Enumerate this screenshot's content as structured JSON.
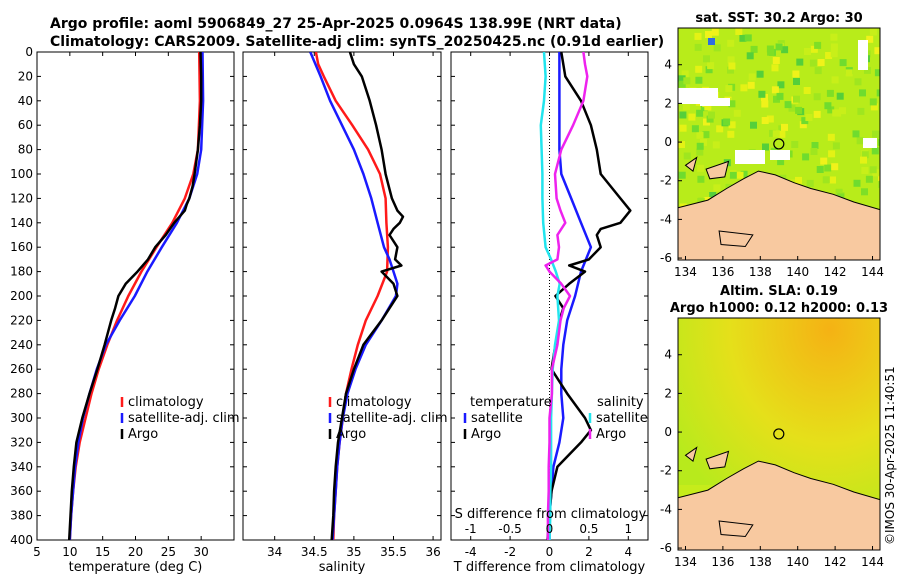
{
  "header": {
    "line1": "Argo profile: aoml 5906849_27 25-Apr-2025 0.0964S 138.99E (NRT data)",
    "line2": "Climatology: CARS2009. Satellite-adj clim: synTS_20250425.nc (0.91d earlier)"
  },
  "colors": {
    "climatology": "#ff1a1a",
    "satellite": "#1a1aff",
    "argo": "#000000",
    "salinity_diff": "#ee22ee",
    "satellite_s_diff": "#22e5ee",
    "land": "#f8c9a0"
  },
  "chart_data": [
    {
      "type": "line",
      "name": "temperature",
      "xlabel": "temperature (deg C)",
      "xlim": [
        5,
        35
      ],
      "xticks": [
        "5",
        "10",
        "15",
        "20",
        "25",
        "30"
      ],
      "xtick_values": [
        5,
        10,
        15,
        20,
        25,
        30
      ],
      "ylim": [
        400,
        0
      ],
      "yticks": [
        "0",
        "20",
        "40",
        "60",
        "80",
        "100",
        "120",
        "140",
        "160",
        "180",
        "200",
        "220",
        "240",
        "260",
        "280",
        "300",
        "320",
        "340",
        "360",
        "380",
        "400"
      ],
      "ytick_values": [
        0,
        20,
        40,
        60,
        80,
        100,
        120,
        140,
        160,
        180,
        200,
        220,
        240,
        260,
        280,
        300,
        320,
        340,
        360,
        380,
        400
      ],
      "legend": [
        "climatology",
        "satellite-adj. clim",
        "Argo"
      ],
      "series": [
        {
          "name": "climatology",
          "color_key": "climatology",
          "depth": [
            0,
            40,
            80,
            100,
            120,
            140,
            160,
            180,
            200,
            220,
            240,
            260,
            280,
            300,
            320,
            340,
            360,
            380,
            400
          ],
          "values": [
            29.7,
            29.8,
            29.5,
            28.8,
            27.5,
            25.6,
            23.2,
            20.9,
            18.9,
            17.2,
            15.7,
            14.4,
            13.3,
            12.4,
            11.5,
            10.9,
            10.5,
            10.2,
            10.0
          ]
        },
        {
          "name": "satellite-adj. clim",
          "color_key": "satellite",
          "depth": [
            0,
            40,
            80,
            100,
            120,
            140,
            160,
            180,
            200,
            220,
            240,
            260,
            280,
            300,
            320,
            340,
            360,
            380,
            400
          ],
          "values": [
            30.2,
            30.3,
            30.0,
            29.4,
            28.2,
            26.3,
            24.0,
            21.8,
            19.9,
            17.6,
            15.5,
            14.1,
            13.0,
            12.0,
            11.3,
            10.8,
            10.5,
            10.2,
            10.0
          ]
        },
        {
          "name": "Argo",
          "color_key": "argo",
          "depth": [
            0,
            20,
            40,
            60,
            80,
            100,
            110,
            120,
            125,
            130,
            140,
            150,
            160,
            170,
            180,
            190,
            200,
            210,
            220,
            240,
            260,
            280,
            300,
            320,
            340,
            360,
            380,
            400
          ],
          "values": [
            29.9,
            30.0,
            30.0,
            29.8,
            29.5,
            29.0,
            28.7,
            28.2,
            27.8,
            27.5,
            25.9,
            24.6,
            23.0,
            21.9,
            20.3,
            18.5,
            17.4,
            16.9,
            16.3,
            15.3,
            14.2,
            13.0,
            11.9,
            11.0,
            10.6,
            10.3,
            10.1,
            9.9
          ]
        }
      ]
    },
    {
      "type": "line",
      "name": "salinity",
      "xlabel": "salinity",
      "xlim": [
        33.6,
        36.1
      ],
      "xticks": [
        "34",
        "34.5",
        "35",
        "35.5",
        "36"
      ],
      "xtick_values": [
        34,
        34.5,
        35,
        35.5,
        36
      ],
      "ylim": [
        400,
        0
      ],
      "legend": [
        "climatology",
        "satellite-adj. clim",
        "Argo"
      ],
      "series": [
        {
          "name": "climatology",
          "color_key": "climatology",
          "depth": [
            0,
            10,
            20,
            40,
            60,
            80,
            100,
            120,
            140,
            160,
            180,
            200,
            220,
            240,
            260,
            280,
            300,
            320,
            340,
            360,
            380,
            400
          ],
          "values": [
            34.52,
            34.55,
            34.62,
            34.77,
            34.98,
            35.18,
            35.33,
            35.4,
            35.41,
            35.43,
            35.42,
            35.3,
            35.15,
            35.05,
            34.97,
            34.9,
            34.86,
            34.82,
            34.79,
            34.77,
            34.75,
            34.74
          ]
        },
        {
          "name": "satellite-adj. clim",
          "color_key": "satellite",
          "depth": [
            0,
            20,
            40,
            60,
            80,
            100,
            120,
            140,
            160,
            170,
            180,
            190,
            200,
            220,
            240,
            260,
            280,
            300,
            320,
            340,
            360,
            380,
            400
          ],
          "values": [
            34.45,
            34.58,
            34.7,
            34.85,
            35.0,
            35.12,
            35.22,
            35.3,
            35.38,
            35.45,
            35.5,
            35.55,
            35.53,
            35.35,
            35.15,
            35.02,
            34.92,
            34.86,
            34.82,
            34.79,
            34.77,
            34.75,
            34.73
          ]
        },
        {
          "name": "Argo",
          "color_key": "argo",
          "depth": [
            0,
            10,
            20,
            40,
            60,
            80,
            100,
            120,
            130,
            135,
            140,
            145,
            150,
            160,
            170,
            175,
            180,
            190,
            200,
            210,
            220,
            240,
            260,
            280,
            300,
            320,
            340,
            360,
            380,
            400
          ],
          "values": [
            34.95,
            35.0,
            35.1,
            35.2,
            35.28,
            35.35,
            35.4,
            35.48,
            35.55,
            35.62,
            35.58,
            35.5,
            35.45,
            35.55,
            35.52,
            35.6,
            35.35,
            35.5,
            35.55,
            35.45,
            35.35,
            35.12,
            35.0,
            34.9,
            34.85,
            34.8,
            34.77,
            34.75,
            34.74,
            34.72
          ]
        }
      ]
    },
    {
      "type": "line",
      "name": "differences",
      "xlabel": "T difference from climatology",
      "xlim": [
        -5,
        5
      ],
      "xticks": [
        "-4",
        "-2",
        "0",
        "2",
        "4"
      ],
      "xtick_values": [
        -4,
        -2,
        0,
        2,
        4
      ],
      "top_xlabel": "S difference from climatology",
      "top_xticks": [
        "-1",
        "-0.5",
        "0",
        "0.5",
        "1"
      ],
      "top_xtick_values": [
        -1,
        -0.5,
        0,
        0.5,
        1
      ],
      "top_xlim": [
        -1.25,
        1.25
      ],
      "ylim": [
        400,
        0
      ],
      "legend_temperature_title": "temperature",
      "legend_salinity_title": "salinity",
      "legend_temperature": [
        "satellite",
        "Argo"
      ],
      "legend_salinity": [
        "satellite",
        "Argo"
      ],
      "series": [
        {
          "name": "temperature satellite",
          "axis": "T",
          "color_key": "satellite",
          "depth": [
            0,
            40,
            80,
            100,
            120,
            140,
            160,
            180,
            200,
            220,
            240,
            260,
            280,
            300,
            320,
            340,
            360,
            380,
            400
          ],
          "values": [
            0.5,
            0.5,
            0.5,
            0.6,
            1.1,
            1.6,
            2.1,
            1.6,
            1.3,
            0.9,
            0.7,
            0.6,
            0.6,
            0.7,
            0.5,
            0.2,
            0.1,
            0.0,
            0.0
          ]
        },
        {
          "name": "temperature Argo",
          "axis": "T",
          "color_key": "argo",
          "depth": [
            0,
            20,
            40,
            60,
            80,
            100,
            120,
            130,
            140,
            145,
            150,
            160,
            170,
            175,
            180,
            190,
            200,
            210,
            220,
            240,
            260,
            280,
            300,
            310,
            320,
            340,
            360,
            380,
            400
          ],
          "values": [
            0.6,
            0.8,
            1.6,
            2.1,
            2.4,
            2.6,
            3.6,
            4.1,
            3.6,
            2.6,
            2.4,
            2.6,
            2.0,
            1.0,
            1.8,
            1.0,
            0.3,
            0.7,
            0.5,
            0.3,
            0.1,
            0.9,
            1.8,
            2.1,
            1.6,
            0.4,
            0.1,
            0.0,
            -0.1
          ]
        },
        {
          "name": "salinity satellite",
          "axis": "S",
          "color_key": "satellite_s_diff",
          "depth": [
            0,
            20,
            40,
            60,
            80,
            100,
            120,
            140,
            160,
            170,
            180,
            190,
            200,
            220,
            240,
            260,
            280,
            300,
            320,
            340,
            360,
            380,
            400
          ],
          "values": [
            -0.07,
            -0.05,
            -0.07,
            -0.11,
            -0.1,
            -0.09,
            -0.09,
            -0.08,
            -0.05,
            0.02,
            0.08,
            0.13,
            0.1,
            0.12,
            0.07,
            0.04,
            0.03,
            0.02,
            0.02,
            0.02,
            0.01,
            0.01,
            0.0
          ]
        },
        {
          "name": "salinity Argo",
          "axis": "S",
          "color_key": "salinity_diff",
          "depth": [
            0,
            10,
            20,
            40,
            60,
            80,
            100,
            120,
            130,
            140,
            150,
            160,
            170,
            175,
            180,
            190,
            200,
            210,
            220,
            240,
            260,
            280,
            300,
            320,
            340,
            360,
            380,
            400
          ],
          "values": [
            0.43,
            0.45,
            0.48,
            0.43,
            0.3,
            0.15,
            0.07,
            0.09,
            0.14,
            0.2,
            0.1,
            0.12,
            0.1,
            -0.05,
            0.0,
            0.15,
            0.26,
            0.18,
            0.14,
            0.1,
            0.03,
            0.03,
            0.0,
            0.0,
            -0.01,
            -0.01,
            -0.02,
            -0.02
          ]
        }
      ]
    },
    {
      "type": "heatmap",
      "name": "sst_map",
      "title": "sat. SST: 30.2 Argo: 30",
      "xticks": [
        "134",
        "136",
        "138",
        "140",
        "142",
        "144"
      ],
      "xtick_values": [
        134,
        136,
        138,
        140,
        142,
        144
      ],
      "xlim": [
        133.6,
        144.4
      ],
      "yticks": [
        "4",
        "2",
        "0",
        "-2",
        "-4",
        "-6"
      ],
      "ytick_values": [
        4,
        2,
        0,
        -2,
        -4,
        -6
      ],
      "ylim": [
        -6.1,
        5.9
      ],
      "argo_position": {
        "lon": 138.99,
        "lat": -0.0964
      }
    },
    {
      "type": "heatmap",
      "name": "sla_map",
      "title_line1": "Altim. SLA: 0.19",
      "title_line2": "Argo h1000: 0.12 h2000: 0.13",
      "xticks": [
        "134",
        "136",
        "138",
        "140",
        "142",
        "144"
      ],
      "xtick_values": [
        134,
        136,
        138,
        140,
        142,
        144
      ],
      "xlim": [
        133.6,
        144.4
      ],
      "yticks": [
        "4",
        "2",
        "0",
        "-2",
        "-4",
        "-6"
      ],
      "ytick_values": [
        4,
        2,
        0,
        -2,
        -4,
        -6
      ],
      "ylim": [
        -6.1,
        5.9
      ],
      "argo_position": {
        "lon": 138.99,
        "lat": -0.0964
      }
    }
  ],
  "footer": {
    "stamp": "©IMOS 30-Apr-2025 11:40:51"
  }
}
